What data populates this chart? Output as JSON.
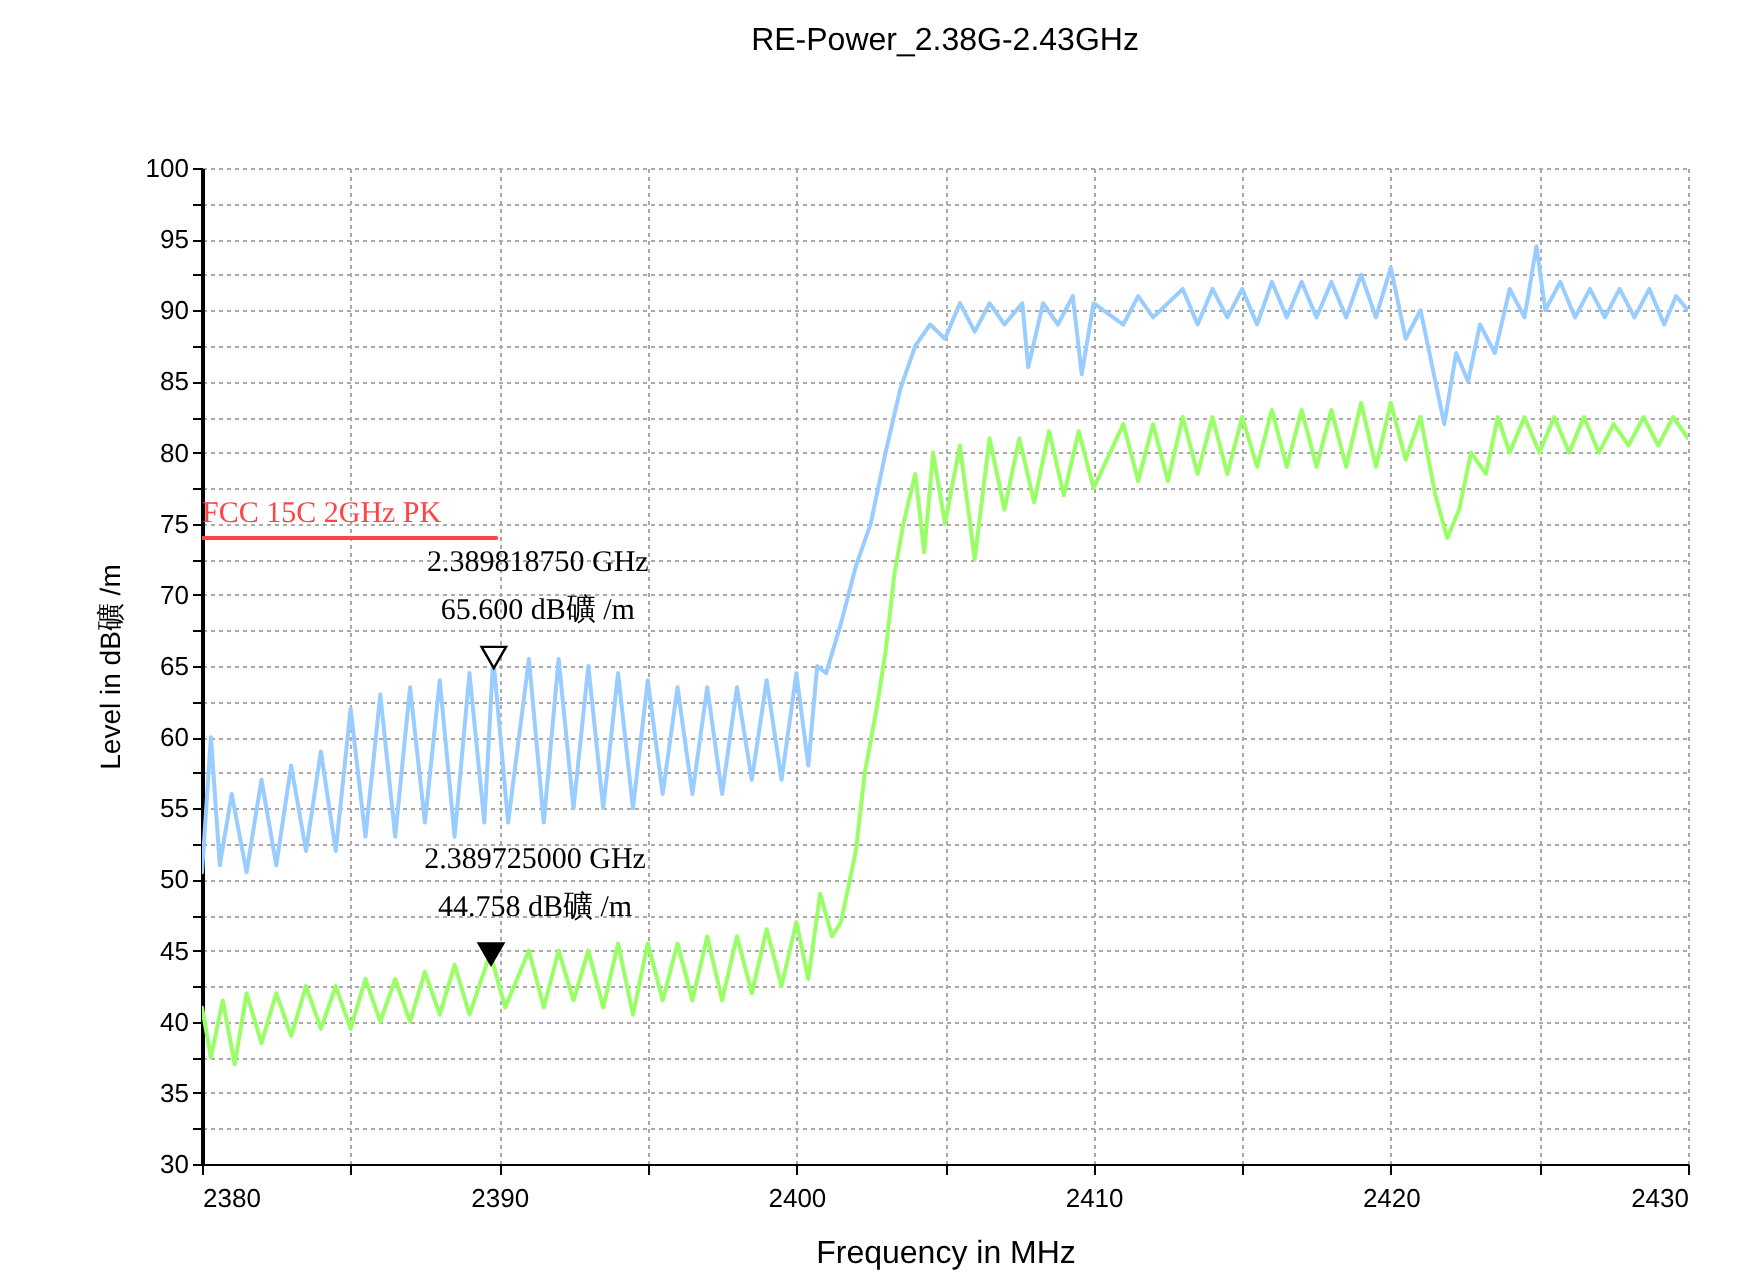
{
  "chart_data": {
    "type": "line",
    "title": "RE-Power_2.38G-2.43GHz",
    "xlabel": "Frequency in MHz",
    "ylabel": "Level in dB礦 /m",
    "xlim": [
      2380,
      2430
    ],
    "xticks": [
      2380,
      {
        "value": 2385,
        "label": null
      },
      2390,
      {
        "value": 2395,
        "label": null
      },
      2400,
      {
        "value": 2405,
        "label": null
      },
      2410,
      {
        "value": 2415,
        "label": null
      },
      2420,
      {
        "value": 2425,
        "label": null
      },
      2430
    ],
    "ylim": [
      30,
      100
    ],
    "yticks": [
      30,
      {
        "value": 32.5,
        "label": null
      },
      35,
      {
        "value": 37.5,
        "label": null
      },
      40,
      {
        "value": 42.5,
        "label": null
      },
      45,
      {
        "value": 47.5,
        "label": null
      },
      50,
      {
        "value": 52.5,
        "label": null
      },
      55,
      {
        "value": 57.5,
        "label": null
      },
      60,
      {
        "value": 62.5,
        "label": null
      },
      65,
      {
        "value": 67.5,
        "label": null
      },
      70,
      {
        "value": 72.5,
        "label": null
      },
      75,
      {
        "value": 77.5,
        "label": null
      },
      80,
      {
        "value": 82.5,
        "label": null
      },
      85,
      {
        "value": 87.5,
        "label": null
      },
      90,
      {
        "value": 92.5,
        "label": null
      },
      95,
      {
        "value": 97.5,
        "label": null
      },
      100
    ],
    "grid": true,
    "series": [
      {
        "color": "#99ccff",
        "x": [
          2380,
          2380.3,
          2380.6,
          2381,
          2381.5,
          2382,
          2382.5,
          2383,
          2383.5,
          2384,
          2384.5,
          2385,
          2385.5,
          2386,
          2386.5,
          2387,
          2387.5,
          2388,
          2388.5,
          2389,
          2389.5,
          2389.8,
          2390.3,
          2391,
          2391.5,
          2392,
          2392.5,
          2393,
          2393.5,
          2394,
          2394.5,
          2395,
          2395.5,
          2396,
          2396.5,
          2397,
          2397.5,
          2398,
          2398.5,
          2399,
          2399.5,
          2400,
          2400.4,
          2400.7,
          2401,
          2401.5,
          2402,
          2402.5,
          2403,
          2403.5,
          2404,
          2404.5,
          2405,
          2405.5,
          2406,
          2406.5,
          2407,
          2407.6,
          2407.8,
          2408.3,
          2408.8,
          2409.3,
          2409.6,
          2410,
          2411,
          2411.5,
          2412,
          2413,
          2413.5,
          2414,
          2414.5,
          2415,
          2415.5,
          2416,
          2416.5,
          2417,
          2417.5,
          2418,
          2418.5,
          2419,
          2419.5,
          2420,
          2420.5,
          2421,
          2421.5,
          2421.8,
          2422.2,
          2422.6,
          2423,
          2423.5,
          2424,
          2424.5,
          2424.9,
          2425.2,
          2425.7,
          2426.2,
          2426.7,
          2427.2,
          2427.7,
          2428.2,
          2428.7,
          2429.2,
          2429.6,
          2430
        ],
        "values": [
          50.5,
          60,
          51,
          56,
          50.5,
          57,
          51,
          58,
          52,
          59,
          52,
          62,
          53,
          63,
          53,
          63.5,
          54,
          64,
          53,
          64.5,
          54,
          65.6,
          54,
          65.5,
          54,
          65.5,
          55,
          65,
          55,
          64.5,
          55,
          64,
          56,
          63.5,
          56,
          63.5,
          56,
          63.5,
          57,
          64,
          57,
          64.5,
          58,
          65,
          64.5,
          68,
          72,
          75,
          80,
          84.5,
          87.5,
          89,
          88,
          90.5,
          88.5,
          90.5,
          89,
          90.5,
          86,
          90.5,
          89,
          91,
          85.5,
          90.5,
          89,
          91,
          89.5,
          91.5,
          89,
          91.5,
          89.5,
          91.5,
          89,
          92,
          89.5,
          92,
          89.5,
          92,
          89.5,
          92.5,
          89.5,
          93,
          88,
          90,
          85,
          82,
          87,
          85,
          89,
          87,
          91.5,
          89.5,
          94.5,
          90,
          92,
          89.5,
          91.5,
          89.5,
          91.5,
          89.5,
          91.5,
          89,
          91,
          90
        ]
      },
      {
        "color": "#99ff66",
        "x": [
          2380,
          2380.3,
          2380.7,
          2381.1,
          2381.5,
          2382,
          2382.5,
          2383,
          2383.5,
          2384,
          2384.5,
          2385,
          2385.5,
          2386,
          2386.5,
          2387,
          2387.5,
          2388,
          2388.5,
          2389,
          2389.7,
          2390.2,
          2391,
          2391.5,
          2392,
          2392.5,
          2393,
          2393.5,
          2394,
          2394.5,
          2395,
          2395.5,
          2396,
          2396.5,
          2397,
          2397.5,
          2398,
          2398.5,
          2399,
          2399.5,
          2400,
          2400.4,
          2400.8,
          2401.2,
          2401.5,
          2402,
          2402.3,
          2402.7,
          2403,
          2403.3,
          2403.6,
          2404,
          2404.3,
          2404.6,
          2405,
          2405.5,
          2406,
          2406.5,
          2407,
          2407.5,
          2408,
          2408.5,
          2409,
          2409.5,
          2410,
          2411,
          2411.5,
          2412,
          2412.5,
          2413,
          2413.5,
          2414,
          2414.5,
          2415,
          2415.5,
          2416,
          2416.5,
          2417,
          2417.5,
          2418,
          2418.5,
          2419,
          2419.5,
          2420,
          2420.5,
          2421,
          2421.5,
          2421.9,
          2422.3,
          2422.7,
          2423.2,
          2423.6,
          2424,
          2424.5,
          2425,
          2425.5,
          2426,
          2426.5,
          2427,
          2427.5,
          2428,
          2428.5,
          2429,
          2429.5,
          2430
        ],
        "values": [
          41,
          37.5,
          41.5,
          37,
          42,
          38.5,
          42,
          39,
          42.5,
          39.5,
          42.5,
          39.5,
          43,
          40,
          43,
          40,
          43.5,
          40.5,
          44,
          40.5,
          44.8,
          41,
          45,
          41,
          45,
          41.5,
          45,
          41,
          45.5,
          40.5,
          45.5,
          41.5,
          45.5,
          41.5,
          46,
          41.5,
          46,
          42,
          46.5,
          42.5,
          47,
          43,
          49,
          46,
          47,
          52,
          57.5,
          62,
          66,
          71.5,
          75,
          78.5,
          73,
          80,
          75,
          80.5,
          72.5,
          81,
          76,
          81,
          76.5,
          81.5,
          77,
          81.5,
          77.5,
          82,
          78,
          82,
          78,
          82.5,
          78.5,
          82.5,
          78.5,
          82.5,
          79,
          83,
          79,
          83,
          79,
          83,
          79,
          83.5,
          79,
          83.5,
          79.5,
          82.5,
          77,
          74,
          76,
          80,
          78.5,
          82.5,
          80,
          82.5,
          80,
          82.5,
          80,
          82.5,
          80,
          82,
          80.5,
          82.5,
          80.5,
          82.5,
          81
        ]
      },
      {
        "name": "FCC 15C 2GHz PK",
        "color": "#ff4444",
        "x": [
          2380,
          2389.9
        ],
        "values": [
          74,
          74
        ]
      },
      {
        "type": "scatter",
        "marker": "triangle",
        "color": "#ffffff",
        "x": [
          2389.81875
        ],
        "values": [
          65.6
        ]
      },
      {
        "type": "scatter",
        "marker": "triangle",
        "color": "#000000",
        "x": [
          2389.725
        ],
        "values": [
          44.758
        ]
      }
    ],
    "annotations": [
      {
        "text": "2.389818750 GHz\n65.600 dB礦 /m",
        "x": 2389.81875,
        "y": 65.6
      },
      {
        "text": "2.389725000 GHz\n44.758 dB礦 /m",
        "x": 2389.725,
        "y": 44.758
      }
    ]
  }
}
